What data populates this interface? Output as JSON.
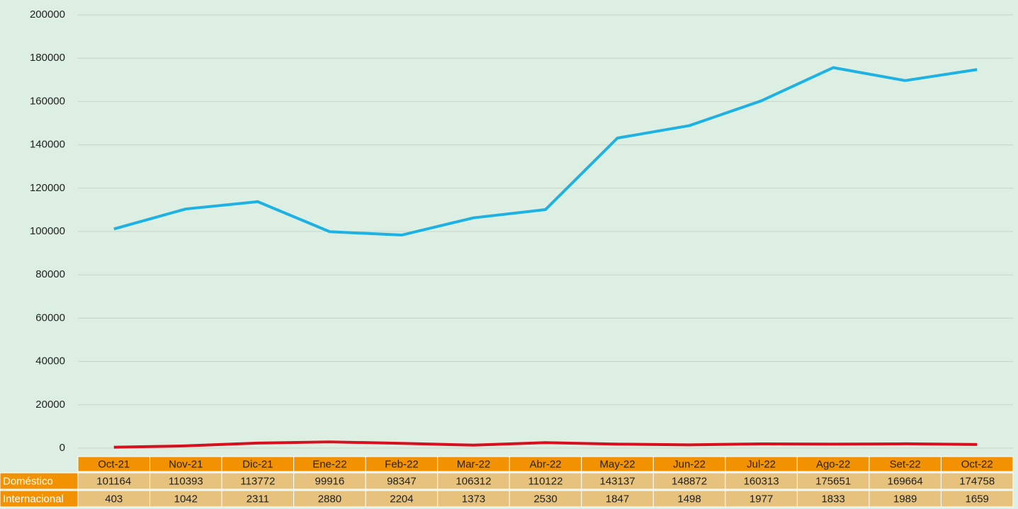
{
  "chart_data": {
    "type": "line",
    "categories": [
      "Oct-21",
      "Nov-21",
      "Dic-21",
      "Ene-22",
      "Feb-22",
      "Mar-22",
      "Abr-22",
      "May-22",
      "Jun-22",
      "Jul-22",
      "Ago-22",
      "Set-22",
      "Oct-22"
    ],
    "series": [
      {
        "name": "Doméstico",
        "color": "#1eb1e4",
        "values": [
          101164,
          110393,
          113772,
          99916,
          98347,
          106312,
          110122,
          143137,
          148872,
          160313,
          175651,
          169664,
          174758
        ]
      },
      {
        "name": "Internacional",
        "color": "#d7101f",
        "values": [
          403,
          1042,
          2311,
          2880,
          2204,
          1373,
          2530,
          1847,
          1498,
          1977,
          1833,
          1989,
          1659
        ]
      }
    ],
    "ylim": [
      0,
      200000
    ],
    "yticks": [
      0,
      20000,
      40000,
      60000,
      80000,
      100000,
      120000,
      140000,
      160000,
      180000,
      200000
    ],
    "grid": true
  }
}
